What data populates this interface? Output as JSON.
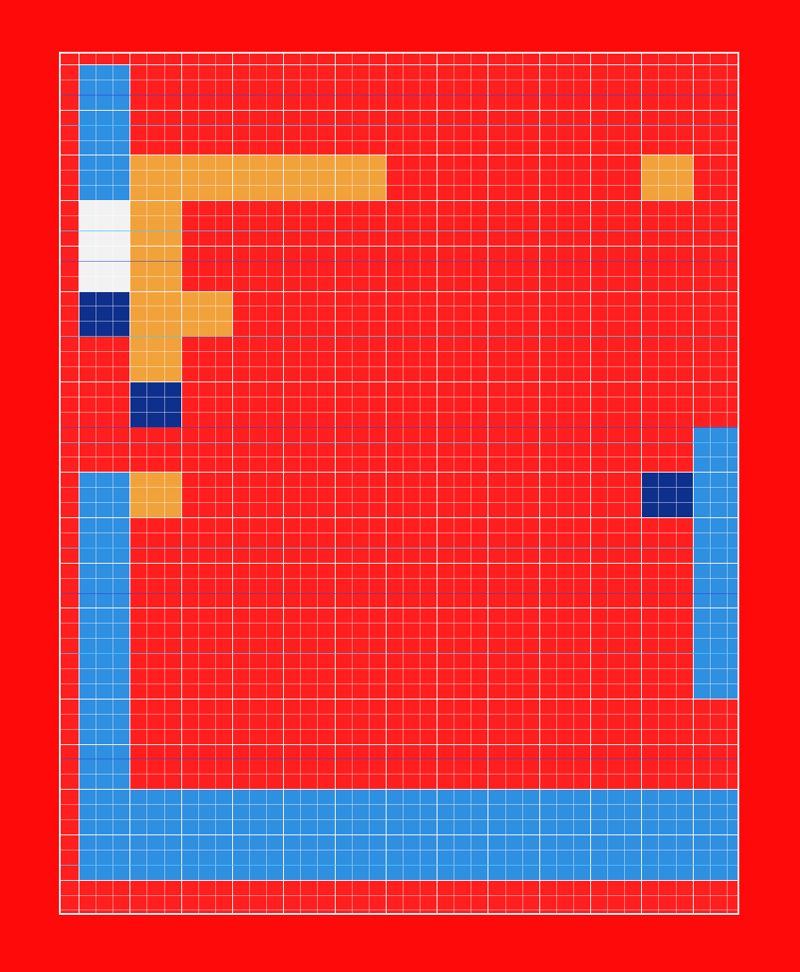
{
  "board": {
    "cols": 14,
    "rows": 19,
    "subdivisions": 3,
    "colors": {
      "background": "#ff0a0a",
      "board": "#ff1f1f",
      "gridline": "#f4f4f4",
      "accent_line": "#50c8ff",
      "blue": "#2f8fe0",
      "navy": "#0f2f8c",
      "orange": "#f2a23a",
      "white": "#f2f2f2"
    },
    "cells": [
      {
        "col": 0,
        "row": 0,
        "color": "blue"
      },
      {
        "col": 0,
        "row": 1,
        "color": "blue"
      },
      {
        "col": 1,
        "row": 2,
        "color": "orange"
      },
      {
        "col": 2,
        "row": 2,
        "color": "orange"
      },
      {
        "col": 3,
        "row": 2,
        "color": "orange"
      },
      {
        "col": 4,
        "row": 2,
        "color": "orange"
      },
      {
        "col": 5,
        "row": 2,
        "color": "orange"
      },
      {
        "col": 11,
        "row": 2,
        "color": "orange"
      },
      {
        "col": 0,
        "row": 2,
        "color": "blue"
      },
      {
        "col": 0,
        "row": 3,
        "color": "white"
      },
      {
        "col": 0,
        "row": 4,
        "color": "white"
      },
      {
        "col": 1,
        "row": 3,
        "color": "orange"
      },
      {
        "col": 1,
        "row": 4,
        "color": "orange"
      },
      {
        "col": 0,
        "row": 5,
        "color": "navy"
      },
      {
        "col": 1,
        "row": 5,
        "color": "orange"
      },
      {
        "col": 2,
        "row": 5,
        "color": "orange"
      },
      {
        "col": 1,
        "row": 6,
        "color": "orange"
      },
      {
        "col": 1,
        "row": 7,
        "color": "navy"
      },
      {
        "col": 1,
        "row": 9,
        "color": "orange"
      },
      {
        "col": 11,
        "row": 9,
        "color": "navy"
      },
      {
        "col": 12,
        "row": 8,
        "color": "blue"
      },
      {
        "col": 12,
        "row": 9,
        "color": "blue"
      },
      {
        "col": 12,
        "row": 10,
        "color": "blue"
      },
      {
        "col": 12,
        "row": 11,
        "color": "blue"
      },
      {
        "col": 12,
        "row": 12,
        "color": "blue"
      },
      {
        "col": 12,
        "row": 13,
        "color": "blue"
      },
      {
        "col": 0,
        "row": 9,
        "color": "blue"
      },
      {
        "col": 0,
        "row": 10,
        "color": "blue"
      },
      {
        "col": 0,
        "row": 11,
        "color": "blue"
      },
      {
        "col": 0,
        "row": 12,
        "color": "blue"
      },
      {
        "col": 0,
        "row": 13,
        "color": "blue"
      },
      {
        "col": 0,
        "row": 14,
        "color": "blue"
      },
      {
        "col": 0,
        "row": 15,
        "color": "blue"
      },
      {
        "col": 0,
        "row": 16,
        "color": "blue"
      },
      {
        "col": 1,
        "row": 16,
        "color": "blue"
      },
      {
        "col": 2,
        "row": 16,
        "color": "blue"
      },
      {
        "col": 3,
        "row": 16,
        "color": "blue"
      },
      {
        "col": 4,
        "row": 16,
        "color": "blue"
      },
      {
        "col": 5,
        "row": 16,
        "color": "blue"
      },
      {
        "col": 6,
        "row": 16,
        "color": "blue"
      },
      {
        "col": 7,
        "row": 16,
        "color": "blue"
      },
      {
        "col": 8,
        "row": 16,
        "color": "blue"
      },
      {
        "col": 9,
        "row": 16,
        "color": "blue"
      },
      {
        "col": 10,
        "row": 16,
        "color": "blue"
      },
      {
        "col": 11,
        "row": 16,
        "color": "blue"
      },
      {
        "col": 12,
        "row": 16,
        "color": "blue"
      },
      {
        "col": 0,
        "row": 17,
        "color": "blue"
      },
      {
        "col": 1,
        "row": 17,
        "color": "blue"
      },
      {
        "col": 2,
        "row": 17,
        "color": "blue"
      },
      {
        "col": 3,
        "row": 17,
        "color": "blue"
      },
      {
        "col": 4,
        "row": 17,
        "color": "blue"
      },
      {
        "col": 5,
        "row": 17,
        "color": "blue"
      },
      {
        "col": 6,
        "row": 17,
        "color": "blue"
      },
      {
        "col": 7,
        "row": 17,
        "color": "blue"
      },
      {
        "col": 8,
        "row": 17,
        "color": "blue"
      },
      {
        "col": 9,
        "row": 17,
        "color": "blue"
      },
      {
        "col": 10,
        "row": 17,
        "color": "blue"
      },
      {
        "col": 11,
        "row": 17,
        "color": "blue"
      },
      {
        "col": 12,
        "row": 17,
        "color": "blue"
      }
    ]
  }
}
